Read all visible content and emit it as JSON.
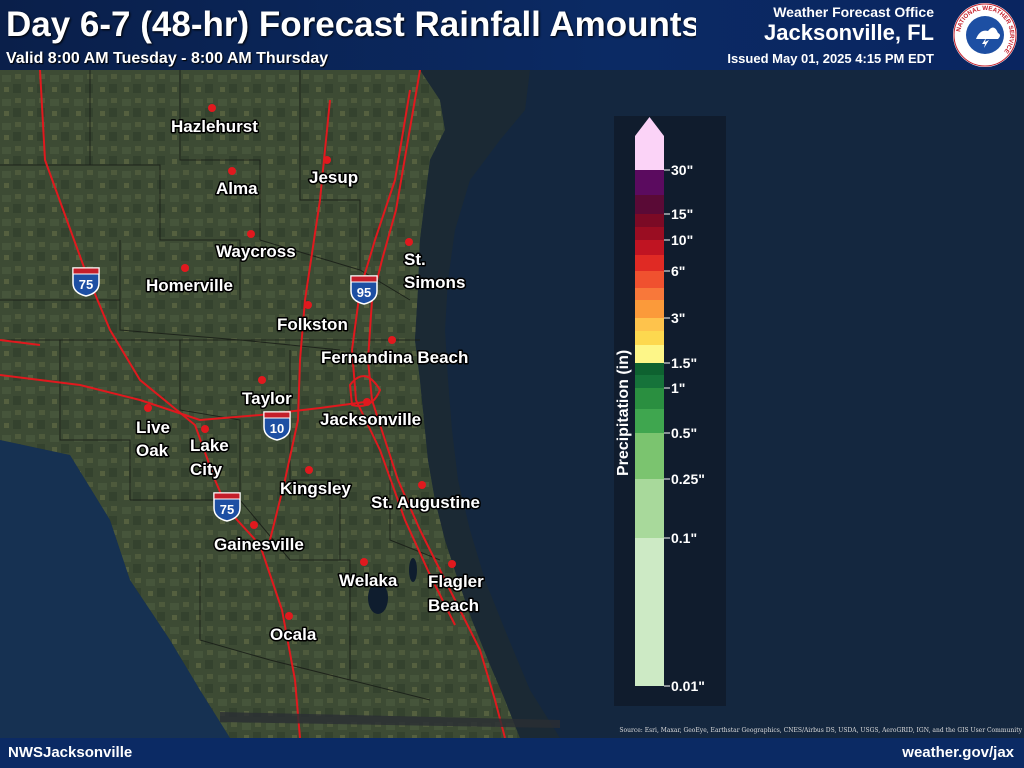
{
  "header": {
    "title": "Day 6-7 (48-hr) Forecast Rainfall Amounts",
    "valid": "Valid 8:00 AM Tuesday - 8:00 AM Thursday",
    "office_label": "Weather Forecast Office",
    "office_name": "Jacksonville, FL",
    "issued": "Issued May 01, 2025 4:15 PM EDT"
  },
  "footer": {
    "left": "NWSJacksonville",
    "right": "weather.gov/jax",
    "attribution": "Source: Esri, Maxar, GeoEye, Earthstar Geographics, CNES/Airbus DS, USDA, USGS, AeroGRID, IGN, and the GIS User Community"
  },
  "logo": {
    "icon": "nws-seal-icon",
    "text": "NATIONAL WEATHER SERVICE"
  },
  "map": {
    "cities": [
      {
        "id": "hazlehurst",
        "lines": [
          "Hazlehurst"
        ]
      },
      {
        "id": "alma",
        "lines": [
          "Alma"
        ]
      },
      {
        "id": "jesup",
        "lines": [
          "Jesup"
        ]
      },
      {
        "id": "waycross",
        "lines": [
          "Waycross"
        ]
      },
      {
        "id": "st-simons",
        "lines": [
          "St.",
          "Simons"
        ]
      },
      {
        "id": "homerville",
        "lines": [
          "Homerville"
        ]
      },
      {
        "id": "folkston",
        "lines": [
          "Folkston"
        ]
      },
      {
        "id": "fernandina-beach",
        "lines": [
          "Fernandina Beach"
        ]
      },
      {
        "id": "taylor",
        "lines": [
          "Taylor"
        ]
      },
      {
        "id": "jacksonville",
        "lines": [
          "Jacksonville"
        ]
      },
      {
        "id": "live-oak",
        "lines": [
          "Live",
          "Oak"
        ]
      },
      {
        "id": "lake-city",
        "lines": [
          "Lake",
          "City"
        ]
      },
      {
        "id": "kingsley",
        "lines": [
          "Kingsley"
        ]
      },
      {
        "id": "st-augustine",
        "lines": [
          "St. Augustine"
        ]
      },
      {
        "id": "gainesville",
        "lines": [
          "Gainesville"
        ]
      },
      {
        "id": "welaka",
        "lines": [
          "Welaka"
        ]
      },
      {
        "id": "flagler-beach",
        "lines": [
          "Flagler",
          "Beach"
        ]
      },
      {
        "id": "ocala",
        "lines": [
          "Ocala"
        ]
      }
    ],
    "interstates": [
      {
        "id": "i75-north",
        "number": "75"
      },
      {
        "id": "i95",
        "number": "95"
      },
      {
        "id": "i10",
        "number": "10"
      },
      {
        "id": "i75-south",
        "number": "75"
      }
    ],
    "colors": {
      "city_marker": "#e0191e",
      "roads": "#e0191e",
      "ocean": "#14273f",
      "land": "#3b4a33",
      "shield_blue": "#1d4fa3"
    }
  },
  "legend": {
    "title": "Precipitation (in)",
    "bins": [
      {
        "min": 0.01,
        "max": 0.1,
        "color": "#cdeac5"
      },
      {
        "min": 0.1,
        "max": 0.25,
        "color": "#a8d99b"
      },
      {
        "min": 0.25,
        "max": 0.5,
        "color": "#7bc46f"
      },
      {
        "min": 0.5,
        "max": 0.75,
        "color": "#3fa64f"
      },
      {
        "min": 0.75,
        "max": 1,
        "color": "#2a8f40"
      },
      {
        "min": 1,
        "max": 1.25,
        "color": "#16733a"
      },
      {
        "min": 1.25,
        "max": 1.5,
        "color": "#0e6230"
      },
      {
        "min": 1.5,
        "max": 2,
        "color": "#fdf688"
      },
      {
        "min": 2,
        "max": 2.5,
        "color": "#fdd84f"
      },
      {
        "min": 2.5,
        "max": 3,
        "color": "#fec34c"
      },
      {
        "min": 3,
        "max": 4,
        "color": "#fb9a3a"
      },
      {
        "min": 4,
        "max": 5,
        "color": "#f8783a"
      },
      {
        "min": 5,
        "max": 6,
        "color": "#f0512f"
      },
      {
        "min": 6,
        "max": 8,
        "color": "#e02a24"
      },
      {
        "min": 8,
        "max": 10,
        "color": "#c01422"
      },
      {
        "min": 10,
        "max": 12,
        "color": "#9a0d22"
      },
      {
        "min": 12,
        "max": 15,
        "color": "#7b0a25"
      },
      {
        "min": 15,
        "max": 20,
        "color": "#5a0a36"
      },
      {
        "min": 20,
        "max": 25,
        "color": "#5b0b5f"
      },
      {
        "min": 25,
        "max": 30,
        "color": "#4a0b85"
      },
      {
        "min": 30,
        "max": null,
        "color": "#fbd3f7"
      }
    ],
    "tick_labels": [
      "0.01\"",
      "0.1\"",
      "0.25\"",
      "0.5\"",
      "1\"",
      "1.5\"",
      "3\"",
      "6\"",
      "10\"",
      "15\"",
      "30\""
    ]
  }
}
